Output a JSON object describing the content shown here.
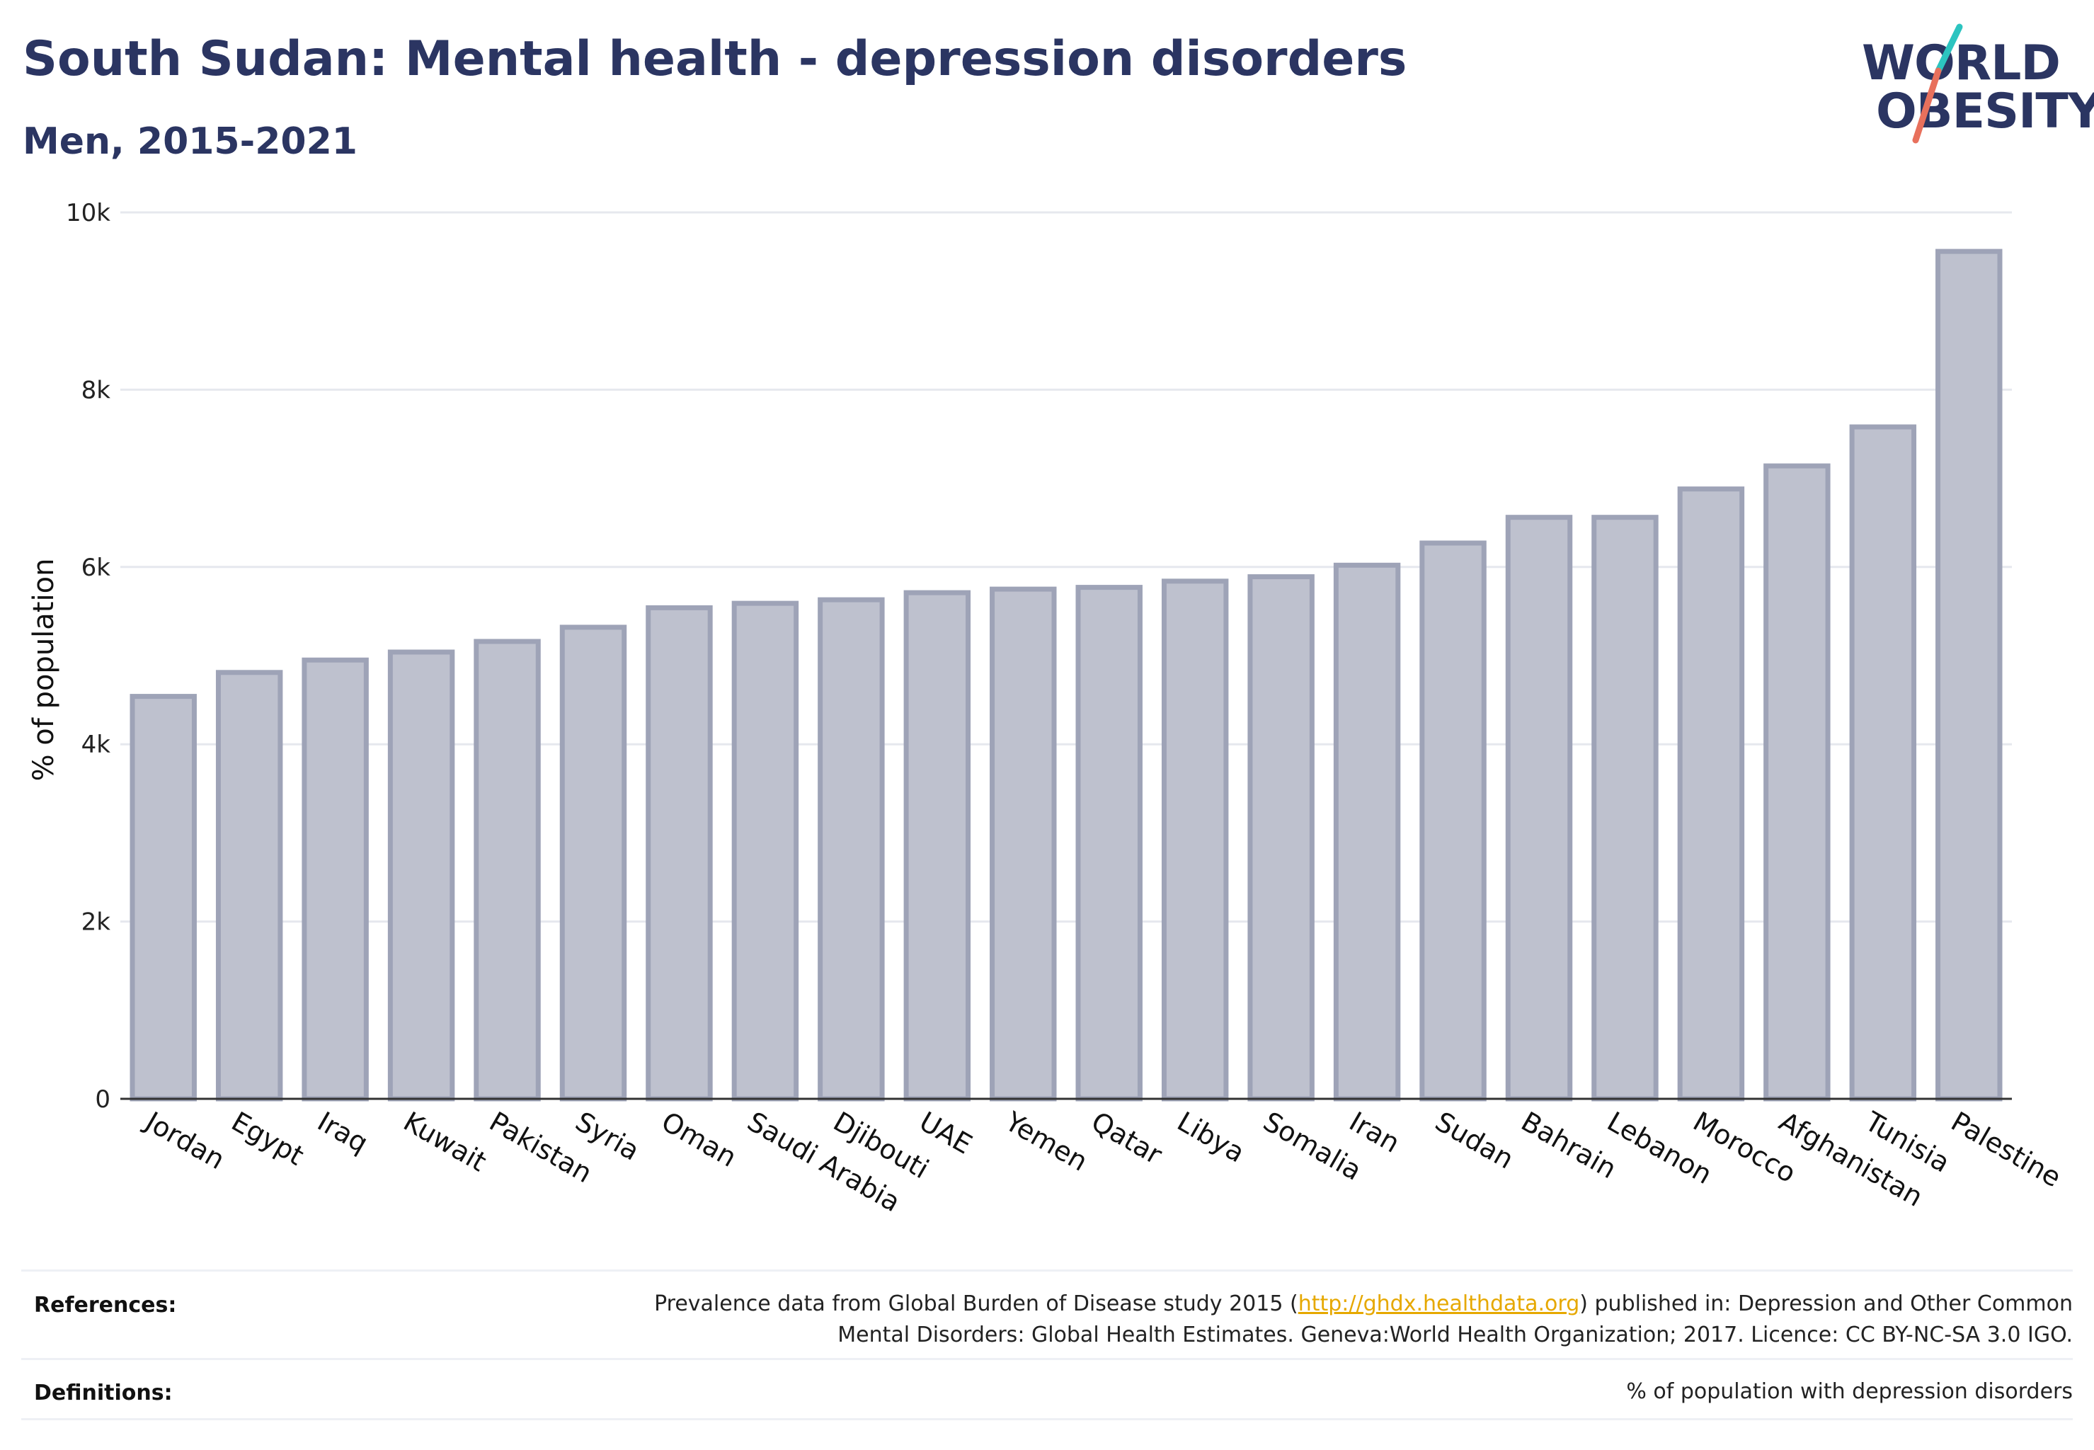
{
  "header": {
    "title": "South Sudan: Mental health - depression disorders",
    "subtitle": "Men, 2015-2021"
  },
  "logo": {
    "line1": "WORLD",
    "line2": "OBESITY",
    "accent_colors": [
      "#2cc4c0",
      "#e8705c"
    ]
  },
  "colors": {
    "text": "#2b3562",
    "bar_fill": "#bec1ce",
    "bar_stroke": "#9ea3b7",
    "grid": "#e6e8ee",
    "axis": "#333333"
  },
  "chart_data": {
    "type": "bar",
    "title": "South Sudan: Mental health - depression disorders",
    "subtitle": "Men, 2015-2021",
    "ylabel": "% of population",
    "xlabel": "",
    "ylim": [
      0,
      10000
    ],
    "yticks": [
      0,
      2000,
      4000,
      6000,
      8000,
      10000
    ],
    "ytick_labels": [
      "0",
      "2k",
      "4k",
      "6k",
      "8k",
      "10k"
    ],
    "grid": true,
    "legend": "none",
    "categories": [
      "Jordan",
      "Egypt",
      "Iraq",
      "Kuwait",
      "Pakistan",
      "Syria",
      "Oman",
      "Saudi Arabia",
      "Djibouti",
      "UAE",
      "Yemen",
      "Qatar",
      "Libya",
      "Somalia",
      "Iran",
      "Sudan",
      "Bahrain",
      "Lebanon",
      "Morocco",
      "Afghanistan",
      "Tunisia",
      "Palestine"
    ],
    "values": [
      4540,
      4810,
      4950,
      5040,
      5160,
      5320,
      5540,
      5590,
      5630,
      5710,
      5750,
      5770,
      5840,
      5890,
      6020,
      6270,
      6560,
      6560,
      6880,
      7140,
      7580,
      9560
    ]
  },
  "footer": {
    "references_label": "References:",
    "references_line1_pre": "Prevalence data from Global Burden of Disease study 2015 (",
    "references_link": "http://ghdx.healthdata.org",
    "references_line1_post": ") published in: Depression and Other Common",
    "references_line2": "Mental Disorders: Global Health Estimates. Geneva:World Health Organization; 2017. Licence: CC BY-NC-SA 3.0 IGO.",
    "definitions_label": "Definitions:",
    "definitions_text": "% of population with depression disorders"
  }
}
